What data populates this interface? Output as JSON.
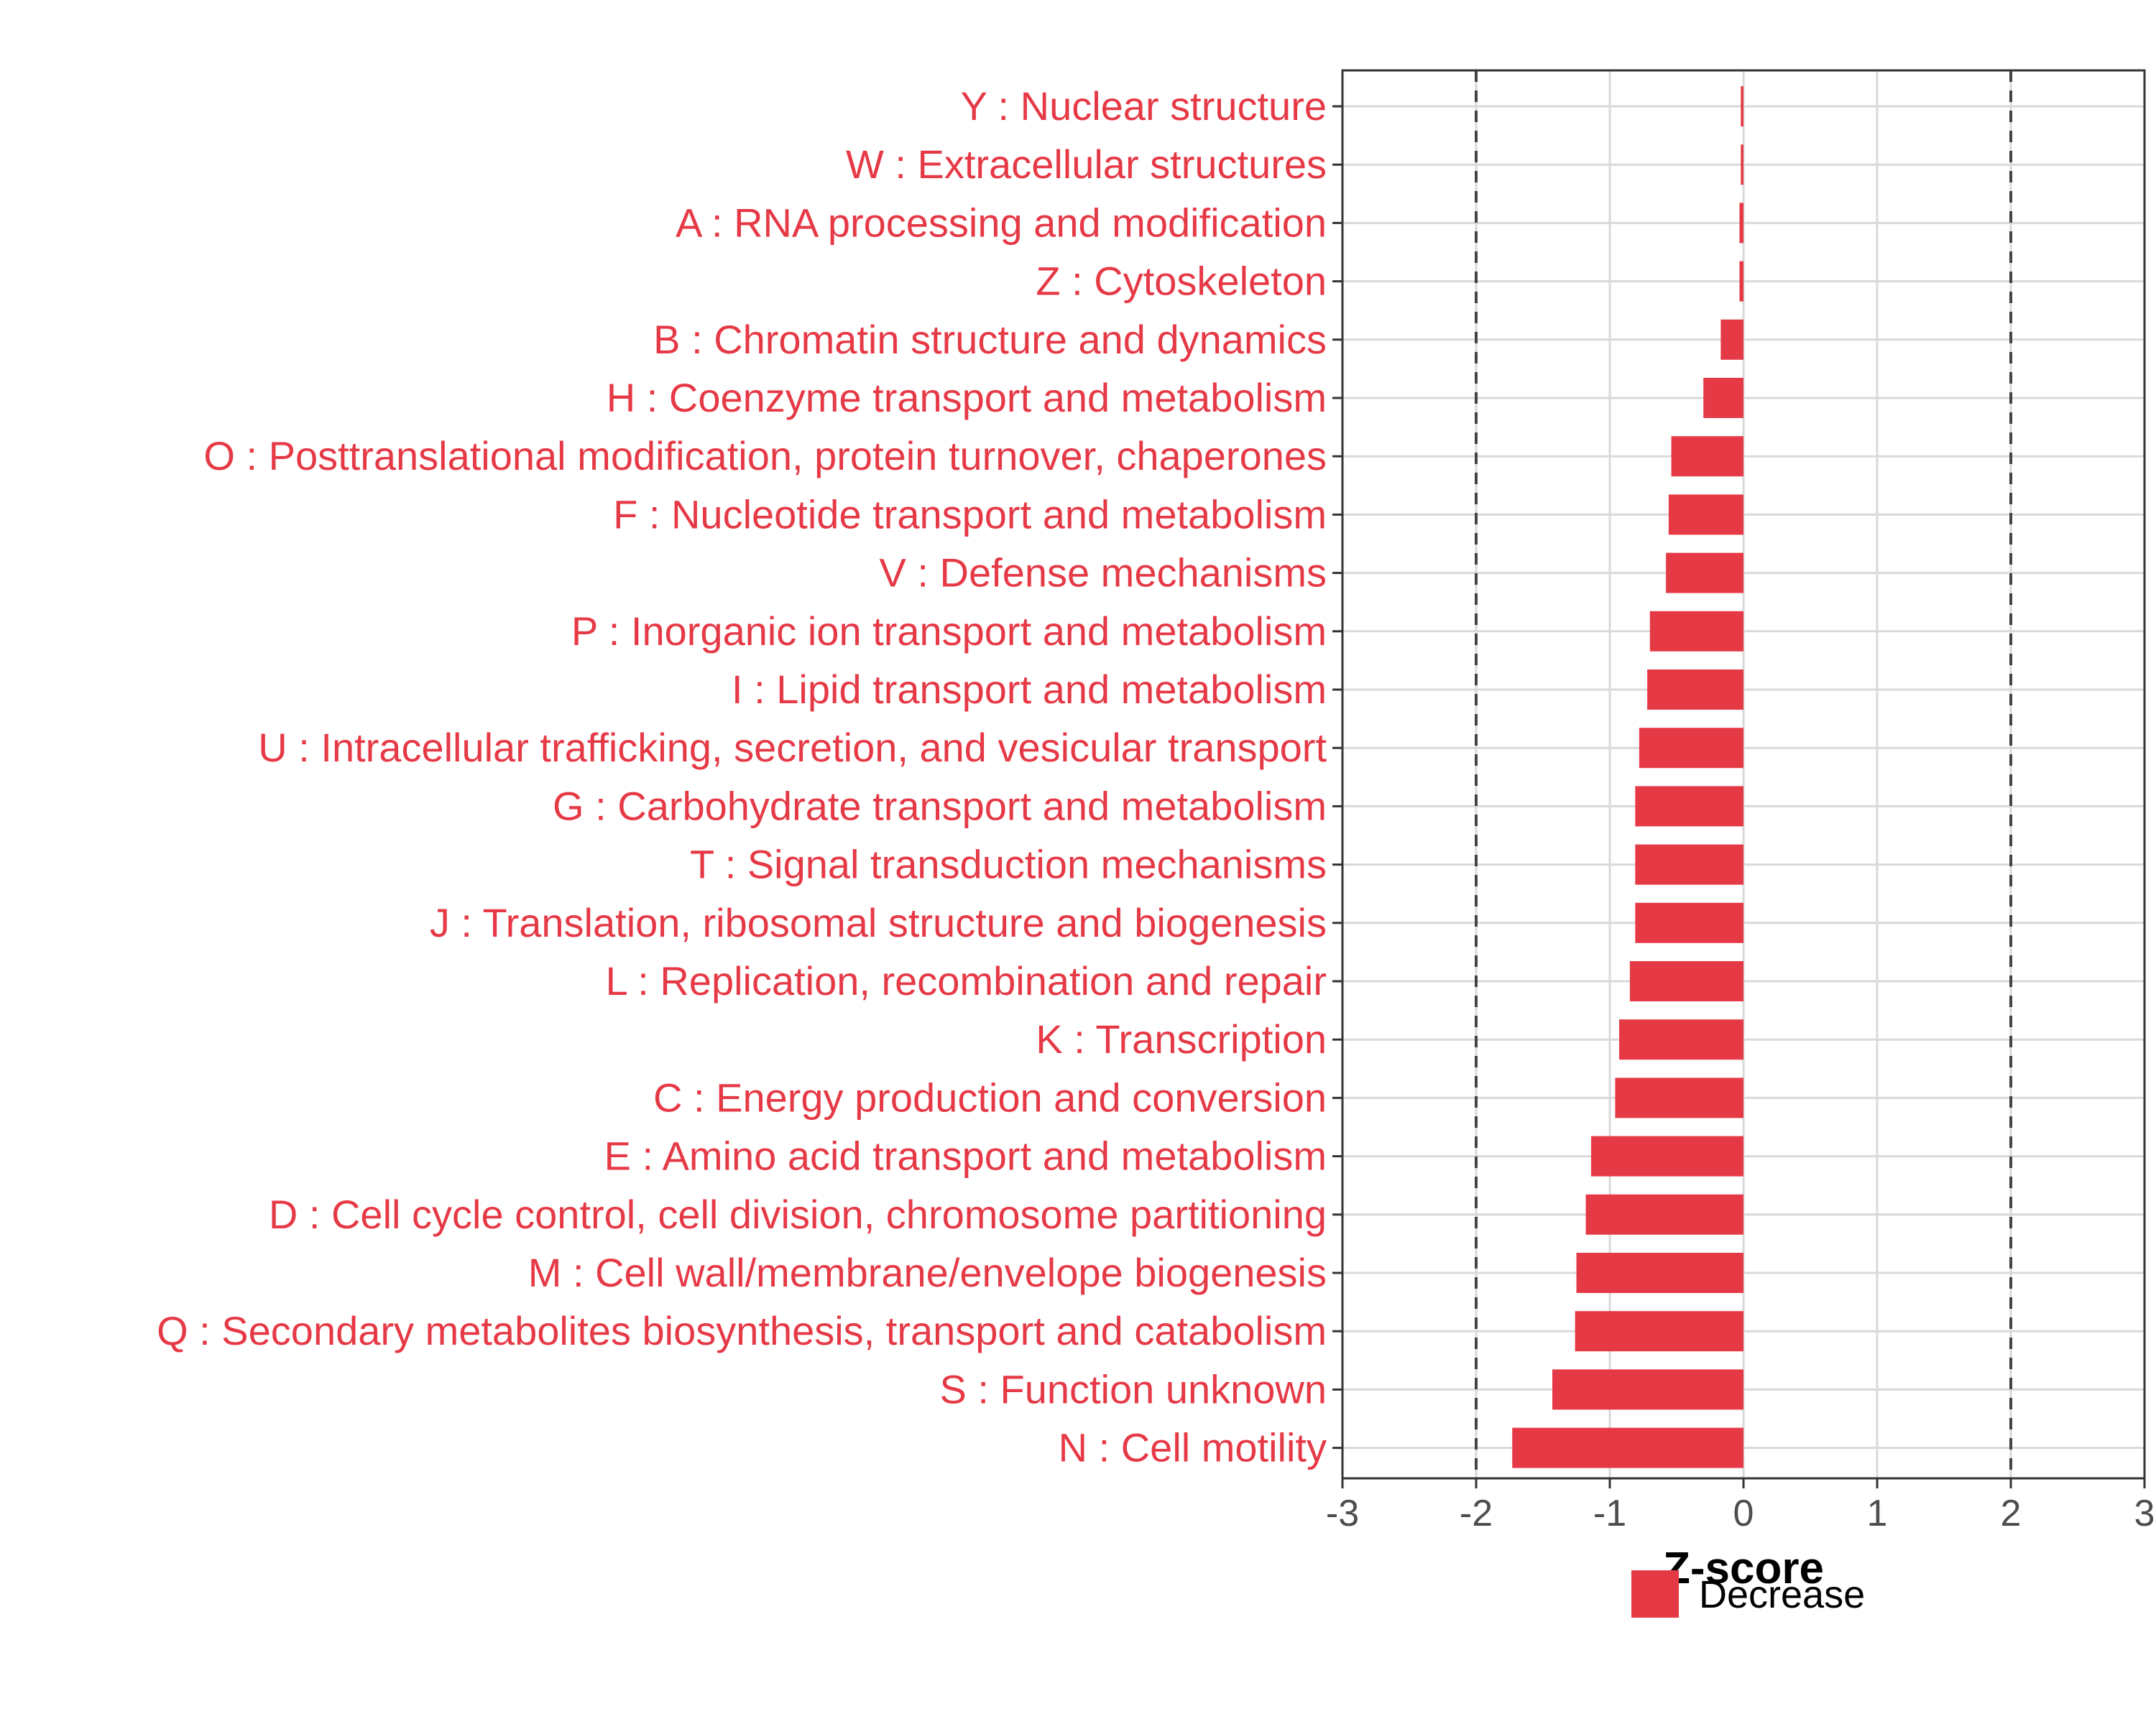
{
  "chart_data": {
    "type": "bar",
    "orientation": "horizontal",
    "categories": [
      "Y : Nuclear structure",
      "W : Extracellular structures",
      "A : RNA processing and modification",
      "Z : Cytoskeleton",
      "B : Chromatin structure and dynamics",
      "H : Coenzyme transport and metabolism",
      "O : Posttranslational modification, protein turnover, chaperones",
      "F : Nucleotide transport and metabolism",
      "V : Defense mechanisms",
      "P : Inorganic ion transport and metabolism",
      "I : Lipid transport and metabolism",
      "U : Intracellular trafficking, secretion, and vesicular transport",
      "G : Carbohydrate transport and metabolism",
      "T : Signal transduction mechanisms",
      "J : Translation, ribosomal structure and biogenesis",
      "L : Replication, recombination and repair",
      "K : Transcription",
      "C : Energy production and conversion",
      "E : Amino acid transport and metabolism",
      "D : Cell cycle control, cell division, chromosome partitioning",
      "M : Cell wall/membrane/envelope biogenesis",
      "Q : Secondary metabolites biosynthesis, transport and catabolism",
      "S : Function unknown",
      "N : Cell motility"
    ],
    "values": [
      -0.02,
      -0.02,
      -0.03,
      -0.03,
      -0.17,
      -0.3,
      -0.54,
      -0.56,
      -0.58,
      -0.7,
      -0.72,
      -0.78,
      -0.81,
      -0.81,
      -0.81,
      -0.85,
      -0.93,
      -0.96,
      -1.14,
      -1.18,
      -1.25,
      -1.26,
      -1.43,
      -1.73
    ],
    "series": [
      {
        "name": "Decrease",
        "color": "#e63946"
      }
    ],
    "label_color": "#e63946",
    "xlabel": "Z-score",
    "ylabel": "",
    "xlim": [
      -3,
      3
    ],
    "xticks": [
      -3,
      -2,
      -1,
      0,
      1,
      2,
      3
    ],
    "tick_labels": [
      "-3",
      "-2",
      "-1",
      "0",
      "1",
      "2",
      "3"
    ],
    "reference_lines": [
      -2,
      2
    ],
    "grid": true,
    "legend_position": "bottom"
  }
}
